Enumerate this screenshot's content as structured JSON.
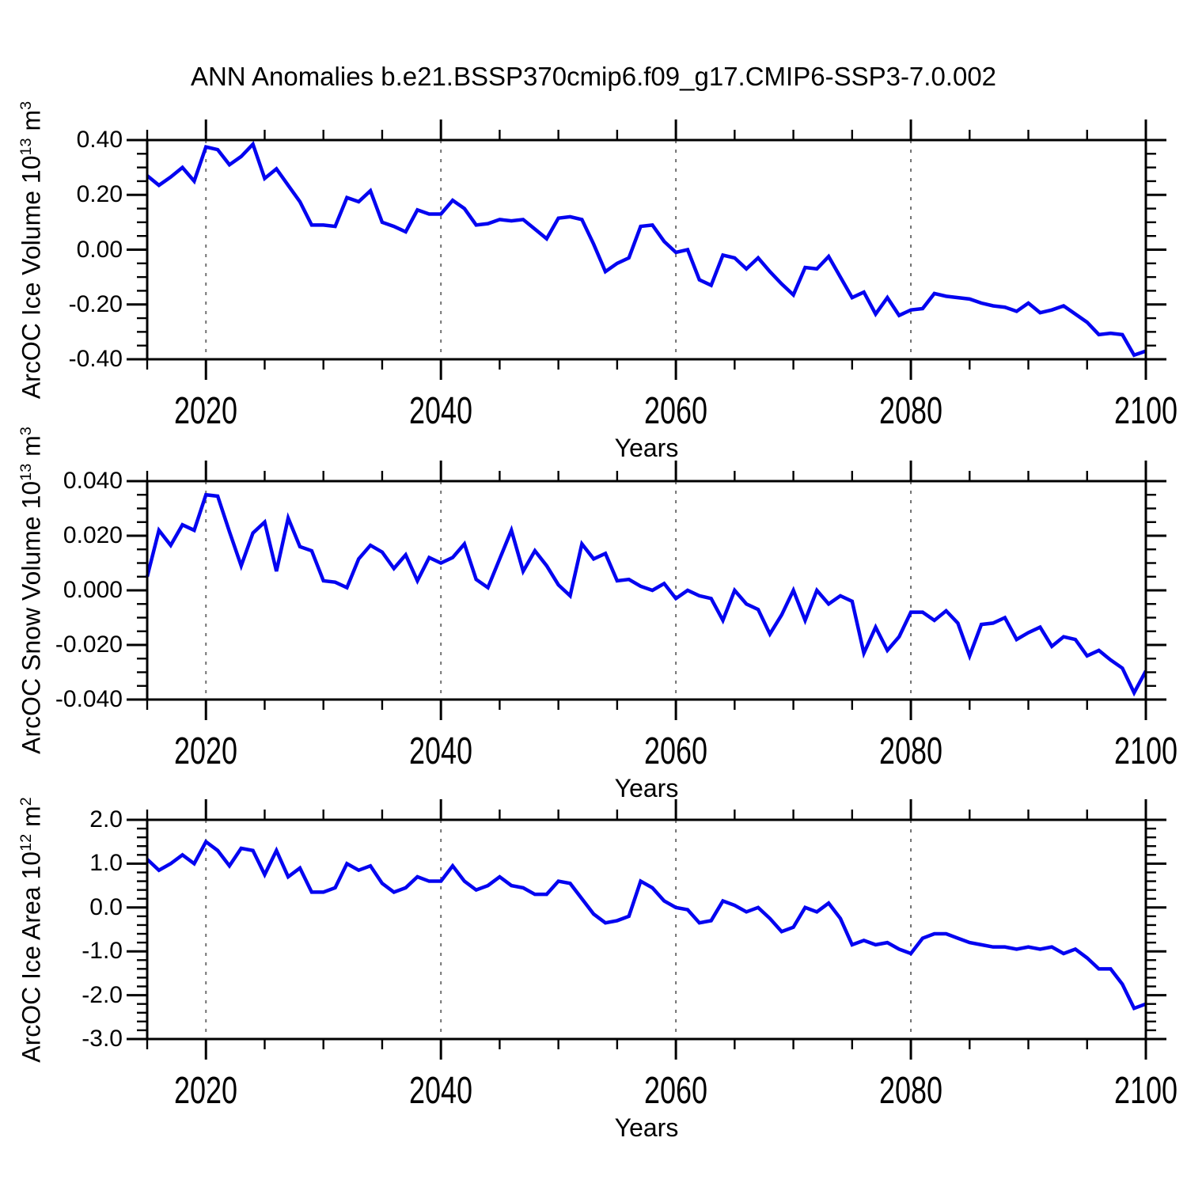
{
  "chart_data": {
    "type": "line",
    "title": "ANN Anomalies b.e21.BSSP370cmip6.f09_g17.CMIP6-SSP3-7.0.002",
    "line_color": "#0404f0",
    "grid_color": "#737373",
    "background": "#ffffff",
    "legend": "none",
    "x": {
      "label": "Years",
      "start": 2015,
      "end": 2100,
      "major_ticks": [
        2020,
        2040,
        2060,
        2080,
        2100
      ],
      "major_tick_labels": [
        "2020",
        "2040",
        "2060",
        "2080",
        "2100"
      ],
      "minor_step": 5,
      "gridlines": [
        2020,
        2040,
        2060,
        2080
      ]
    },
    "panels": [
      {
        "name": "ice-volume",
        "ylabel": {
          "p1": "ArcOC Ice Volume 10",
          "s1": "13",
          "p2": " m",
          "s2": "3"
        },
        "y_min": -0.4,
        "y_max": 0.4,
        "y_major": [
          0.4,
          0.2,
          0.0,
          -0.2,
          -0.4
        ],
        "y_tick_labels": [
          "0.40",
          "0.20",
          "0.00",
          "-0.20",
          "-0.40"
        ],
        "y_minor_step": 0.05,
        "values": [
          0.27,
          0.235,
          0.265,
          0.3,
          0.25,
          0.375,
          0.365,
          0.31,
          0.34,
          0.385,
          0.26,
          0.295,
          0.235,
          0.175,
          0.09,
          0.09,
          0.085,
          0.19,
          0.175,
          0.215,
          0.1,
          0.085,
          0.065,
          0.145,
          0.13,
          0.13,
          0.18,
          0.15,
          0.09,
          0.095,
          0.11,
          0.105,
          0.11,
          0.075,
          0.04,
          0.115,
          0.12,
          0.11,
          0.02,
          -0.08,
          -0.05,
          -0.03,
          0.085,
          0.09,
          0.03,
          -0.01,
          0.0,
          -0.11,
          -0.13,
          -0.02,
          -0.03,
          -0.07,
          -0.03,
          -0.08,
          -0.125,
          -0.165,
          -0.065,
          -0.07,
          -0.025,
          -0.1,
          -0.175,
          -0.155,
          -0.235,
          -0.175,
          -0.24,
          -0.22,
          -0.215,
          -0.16,
          -0.17,
          -0.175,
          -0.18,
          -0.195,
          -0.205,
          -0.21,
          -0.225,
          -0.195,
          -0.23,
          -0.22,
          -0.205,
          -0.235,
          -0.265,
          -0.31,
          -0.305,
          -0.31,
          -0.385,
          -0.37
        ]
      },
      {
        "name": "snow-volume",
        "ylabel": {
          "p1": "ArcOC Snow Volume 10",
          "s1": "13",
          "p2": " m",
          "s2": "3"
        },
        "y_min": -0.04,
        "y_max": 0.04,
        "y_major": [
          0.04,
          0.02,
          0.0,
          -0.02,
          -0.04
        ],
        "y_tick_labels": [
          "0.040",
          "0.020",
          "0.000",
          "-0.020",
          "-0.040"
        ],
        "y_minor_step": 0.005,
        "values": [
          0.005,
          0.022,
          0.0165,
          0.024,
          0.022,
          0.035,
          0.0345,
          0.0215,
          0.009,
          0.021,
          0.025,
          0.007,
          0.0265,
          0.016,
          0.0145,
          0.0035,
          0.003,
          0.001,
          0.0115,
          0.0165,
          0.014,
          0.008,
          0.013,
          0.0035,
          0.012,
          0.01,
          0.012,
          0.017,
          0.004,
          0.001,
          0.0115,
          0.022,
          0.007,
          0.0145,
          0.009,
          0.002,
          -0.002,
          0.017,
          0.0115,
          0.0135,
          0.0035,
          0.004,
          0.0015,
          0.0,
          0.0025,
          -0.003,
          0.0,
          -0.002,
          -0.003,
          -0.011,
          0.0,
          -0.005,
          -0.007,
          -0.016,
          -0.009,
          0.0,
          -0.011,
          0.0,
          -0.005,
          -0.002,
          -0.004,
          -0.023,
          -0.0135,
          -0.022,
          -0.017,
          -0.008,
          -0.008,
          -0.011,
          -0.0075,
          -0.012,
          -0.024,
          -0.0125,
          -0.012,
          -0.01,
          -0.018,
          -0.0155,
          -0.0135,
          -0.0205,
          -0.017,
          -0.018,
          -0.024,
          -0.022,
          -0.0255,
          -0.0285,
          -0.0375,
          -0.0295
        ]
      },
      {
        "name": "ice-area",
        "ylabel": {
          "p1": "ArcOC Ice Area 10",
          "s1": "12",
          "p2": " m",
          "s2": "2"
        },
        "y_min": -3.0,
        "y_max": 2.0,
        "y_major": [
          2.0,
          1.0,
          0.0,
          -1.0,
          -2.0,
          -3.0
        ],
        "y_tick_labels": [
          "2.0",
          "1.0",
          "0.0",
          "-1.0",
          "-2.0",
          "-3.0"
        ],
        "y_minor_step": 0.2,
        "values": [
          1.1,
          0.85,
          1.0,
          1.2,
          1.0,
          1.5,
          1.3,
          0.95,
          1.35,
          1.3,
          0.75,
          1.3,
          0.7,
          0.9,
          0.35,
          0.35,
          0.45,
          1.0,
          0.85,
          0.95,
          0.55,
          0.35,
          0.45,
          0.7,
          0.6,
          0.6,
          0.95,
          0.6,
          0.4,
          0.5,
          0.7,
          0.5,
          0.45,
          0.3,
          0.3,
          0.6,
          0.55,
          0.2,
          -0.15,
          -0.35,
          -0.3,
          -0.2,
          0.6,
          0.45,
          0.15,
          0.0,
          -0.05,
          -0.35,
          -0.3,
          0.15,
          0.05,
          -0.1,
          0.0,
          -0.25,
          -0.55,
          -0.45,
          0.0,
          -0.1,
          0.1,
          -0.25,
          -0.85,
          -0.75,
          -0.85,
          -0.8,
          -0.95,
          -1.05,
          -0.7,
          -0.6,
          -0.6,
          -0.7,
          -0.8,
          -0.85,
          -0.9,
          -0.9,
          -0.95,
          -0.9,
          -0.95,
          -0.9,
          -1.05,
          -0.95,
          -1.15,
          -1.4,
          -1.4,
          -1.75,
          -2.3,
          -2.2
        ]
      }
    ]
  }
}
